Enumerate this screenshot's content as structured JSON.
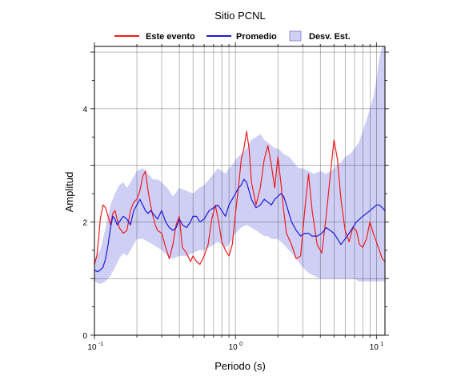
{
  "chart_data": {
    "type": "line",
    "title": "Sitio PCNL",
    "xlabel": "Periodo (s)",
    "ylabel": "Amplitud",
    "x_scale": "log",
    "xlim": [
      0.1,
      11.5
    ],
    "ylim": [
      0,
      5.1
    ],
    "grid": true,
    "legend_position": "top",
    "x_tick_labels": [
      {
        "value": 0.1,
        "base": "10",
        "exp": "-1"
      },
      {
        "value": 1,
        "base": "10",
        "exp": "0"
      },
      {
        "value": 10,
        "base": "10",
        "exp": "1"
      }
    ],
    "y_tick_labels": [
      {
        "value": 0,
        "label": "0"
      },
      {
        "value": 2,
        "label": "2"
      },
      {
        "value": 4,
        "label": "4"
      }
    ],
    "legend": {
      "event_label": "Este evento",
      "mean_label": "Promedio",
      "std_label": "Desv. Est."
    },
    "colors": {
      "event": "#ee1c1c",
      "mean": "#1a1ad8",
      "band": "#cfcff5"
    },
    "series": [
      {
        "name": "Este evento",
        "color": "#ee1c1c",
        "x": [
          0.1,
          0.104,
          0.107,
          0.11,
          0.115,
          0.12,
          0.125,
          0.13,
          0.135,
          0.14,
          0.145,
          0.15,
          0.16,
          0.17,
          0.18,
          0.19,
          0.2,
          0.21,
          0.22,
          0.23,
          0.24,
          0.25,
          0.26,
          0.27,
          0.28,
          0.3,
          0.32,
          0.34,
          0.36,
          0.38,
          0.4,
          0.42,
          0.45,
          0.48,
          0.5,
          0.53,
          0.56,
          0.6,
          0.64,
          0.68,
          0.72,
          0.76,
          0.8,
          0.85,
          0.9,
          0.95,
          1.0,
          1.05,
          1.1,
          1.15,
          1.2,
          1.25,
          1.3,
          1.4,
          1.5,
          1.6,
          1.7,
          1.8,
          1.9,
          2.0,
          2.1,
          2.2,
          2.3,
          2.5,
          2.7,
          2.9,
          3.1,
          3.3,
          3.5,
          3.8,
          4.1,
          4.4,
          4.7,
          5.0,
          5.3,
          5.6,
          6.0,
          6.4,
          6.8,
          7.2,
          7.6,
          8.0,
          8.5,
          9.0,
          9.5,
          10.0,
          10.5,
          11.0,
          11.5
        ],
        "y": [
          1.25,
          1.4,
          1.7,
          2.05,
          2.3,
          2.25,
          2.1,
          1.95,
          2.15,
          2.2,
          2.05,
          1.9,
          1.8,
          1.85,
          2.2,
          2.35,
          2.4,
          2.55,
          2.8,
          2.9,
          2.55,
          2.3,
          2.1,
          1.95,
          1.85,
          1.8,
          1.55,
          1.35,
          1.6,
          1.95,
          2.1,
          1.55,
          1.45,
          1.3,
          1.4,
          1.3,
          1.25,
          1.4,
          1.6,
          2.05,
          2.3,
          2.0,
          1.65,
          1.5,
          1.4,
          1.6,
          2.15,
          2.6,
          3.1,
          3.3,
          3.6,
          3.3,
          2.7,
          2.3,
          2.6,
          3.1,
          3.35,
          3.0,
          2.6,
          3.15,
          2.7,
          2.2,
          1.8,
          1.6,
          1.35,
          1.4,
          2.2,
          2.85,
          2.2,
          1.6,
          1.45,
          2.1,
          2.8,
          3.45,
          3.1,
          2.4,
          1.85,
          1.65,
          1.9,
          1.85,
          1.6,
          1.55,
          1.7,
          2.0,
          1.8,
          1.65,
          1.5,
          1.35,
          1.3
        ]
      },
      {
        "name": "Promedio",
        "color": "#1a1ad8",
        "x": [
          0.1,
          0.105,
          0.11,
          0.115,
          0.12,
          0.125,
          0.13,
          0.135,
          0.14,
          0.145,
          0.15,
          0.16,
          0.17,
          0.18,
          0.19,
          0.2,
          0.21,
          0.22,
          0.23,
          0.24,
          0.25,
          0.26,
          0.28,
          0.3,
          0.32,
          0.34,
          0.36,
          0.38,
          0.4,
          0.42,
          0.45,
          0.48,
          0.5,
          0.53,
          0.56,
          0.6,
          0.65,
          0.7,
          0.75,
          0.8,
          0.85,
          0.9,
          0.95,
          1.0,
          1.05,
          1.1,
          1.15,
          1.2,
          1.25,
          1.3,
          1.4,
          1.5,
          1.6,
          1.7,
          1.8,
          1.9,
          2.0,
          2.1,
          2.2,
          2.3,
          2.5,
          2.7,
          2.9,
          3.1,
          3.3,
          3.5,
          3.8,
          4.1,
          4.4,
          4.7,
          5.0,
          5.3,
          5.6,
          6.0,
          6.4,
          6.8,
          7.2,
          7.6,
          8.0,
          8.5,
          9.0,
          9.5,
          10.0,
          10.5,
          11.0,
          11.5
        ],
        "y": [
          1.15,
          1.12,
          1.15,
          1.2,
          1.35,
          1.6,
          1.9,
          2.1,
          2.05,
          1.95,
          2.0,
          2.1,
          2.05,
          1.95,
          2.2,
          2.3,
          2.4,
          2.3,
          2.2,
          2.15,
          2.2,
          2.15,
          2.05,
          2.2,
          2.0,
          1.9,
          1.85,
          1.9,
          2.05,
          1.95,
          1.9,
          2.0,
          2.1,
          2.1,
          2.0,
          2.05,
          2.2,
          2.25,
          2.3,
          2.2,
          2.1,
          2.3,
          2.4,
          2.5,
          2.6,
          2.65,
          2.75,
          2.7,
          2.55,
          2.4,
          2.25,
          2.3,
          2.4,
          2.35,
          2.3,
          2.4,
          2.45,
          2.5,
          2.45,
          2.3,
          2.0,
          1.85,
          1.75,
          1.8,
          1.8,
          1.75,
          1.75,
          1.8,
          1.9,
          1.85,
          1.8,
          1.7,
          1.6,
          1.7,
          1.8,
          1.9,
          2.0,
          2.05,
          2.1,
          2.15,
          2.2,
          2.25,
          2.3,
          2.3,
          2.25,
          2.2
        ]
      },
      {
        "name": "Desv. Est.",
        "color": "#cfcff5",
        "x": [
          0.1,
          0.11,
          0.12,
          0.13,
          0.14,
          0.15,
          0.16,
          0.17,
          0.18,
          0.19,
          0.2,
          0.22,
          0.24,
          0.26,
          0.28,
          0.3,
          0.33,
          0.36,
          0.4,
          0.45,
          0.5,
          0.55,
          0.6,
          0.65,
          0.7,
          0.75,
          0.8,
          0.85,
          0.9,
          0.95,
          1.0,
          1.1,
          1.2,
          1.3,
          1.4,
          1.5,
          1.6,
          1.7,
          1.8,
          1.9,
          2.0,
          2.2,
          2.4,
          2.6,
          2.8,
          3.0,
          3.3,
          3.6,
          4.0,
          4.4,
          4.8,
          5.2,
          5.6,
          6.0,
          6.5,
          7.0,
          7.5,
          8.0,
          8.5,
          9.0,
          9.5,
          10.0,
          10.5,
          11.0,
          11.5
        ],
        "upper": [
          1.35,
          1.5,
          1.9,
          2.3,
          2.5,
          2.65,
          2.7,
          2.6,
          2.7,
          2.8,
          2.9,
          2.95,
          2.85,
          2.75,
          2.75,
          2.7,
          2.6,
          2.45,
          2.6,
          2.55,
          2.5,
          2.6,
          2.65,
          2.75,
          2.85,
          2.95,
          2.9,
          2.85,
          2.95,
          3.0,
          3.1,
          3.2,
          3.3,
          3.45,
          3.5,
          3.55,
          3.45,
          3.4,
          3.35,
          3.3,
          3.3,
          3.2,
          3.15,
          3.05,
          2.95,
          2.95,
          2.9,
          2.85,
          2.9,
          2.85,
          2.9,
          3.0,
          3.05,
          3.15,
          3.2,
          3.3,
          3.4,
          3.6,
          3.8,
          4.0,
          4.2,
          4.5,
          4.9,
          5.1,
          5.1
        ],
        "lower": [
          0.95,
          0.9,
          0.95,
          1.05,
          1.2,
          1.35,
          1.45,
          1.4,
          1.5,
          1.6,
          1.7,
          1.7,
          1.65,
          1.6,
          1.55,
          1.5,
          1.4,
          1.35,
          1.4,
          1.4,
          1.45,
          1.5,
          1.5,
          1.55,
          1.6,
          1.65,
          1.6,
          1.55,
          1.6,
          1.7,
          1.8,
          1.9,
          1.95,
          1.9,
          1.85,
          1.8,
          1.75,
          1.75,
          1.7,
          1.7,
          1.7,
          1.6,
          1.5,
          1.4,
          1.3,
          1.2,
          1.1,
          1.05,
          1.0,
          1.0,
          1.0,
          1.0,
          1.0,
          1.0,
          1.0,
          1.0,
          0.95,
          0.95,
          0.95,
          0.95,
          0.95,
          0.95,
          0.95,
          0.95,
          0.95
        ]
      }
    ]
  }
}
